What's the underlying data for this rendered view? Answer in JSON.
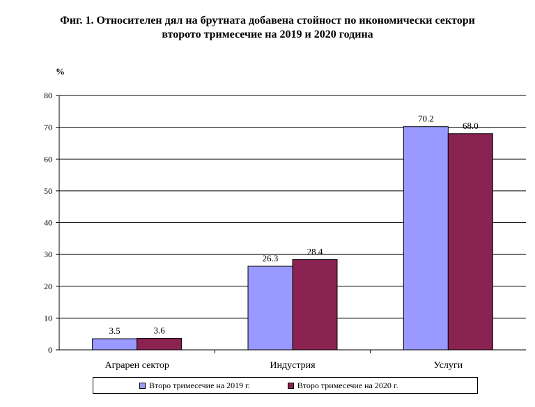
{
  "chart_data": {
    "type": "bar",
    "title_line1": "Фиг. 1. Относителен дял на брутната добавена стойност по икономически сектори",
    "title_line2": "второто тримесечие на 2019 и 2020 година",
    "ylabel": "%",
    "ylim": [
      0,
      80
    ],
    "yticks": [
      "0",
      "10",
      "20",
      "30",
      "40",
      "50",
      "60",
      "70",
      "80"
    ],
    "categories": [
      "Аграрен сектор",
      "Индустрия",
      "Услуги"
    ],
    "series": [
      {
        "name": "Второ тримесечие на 2019 г.",
        "color": "#9999ff",
        "values": [
          3.5,
          26.3,
          70.2
        ],
        "labels": [
          "3.5",
          "26.3",
          "70.2"
        ]
      },
      {
        "name": "Второ тримесечие на 2020 г.",
        "color": "#8b2352",
        "values": [
          3.6,
          28.4,
          68.0
        ],
        "labels": [
          "3.6",
          "28.4",
          "68.0"
        ]
      }
    ],
    "grid": true,
    "legend_position": "bottom"
  }
}
